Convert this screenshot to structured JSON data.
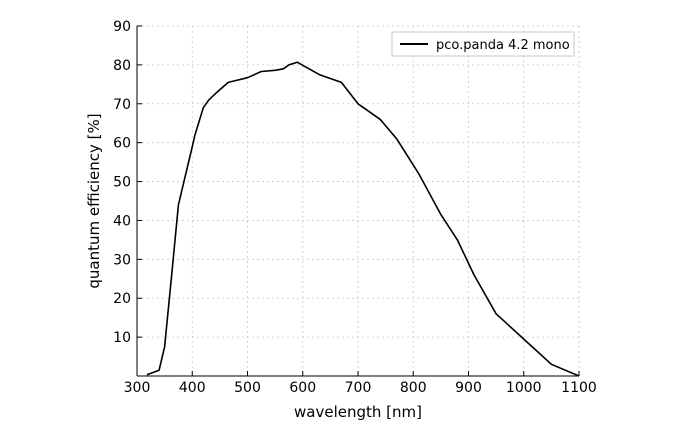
{
  "chart_data": {
    "type": "line",
    "title": "",
    "xlabel": "wavelength [nm]",
    "ylabel": "quantum efficiency [%]",
    "xlim": [
      300,
      1100
    ],
    "ylim": [
      0,
      90
    ],
    "xticks": [
      300,
      400,
      500,
      600,
      700,
      800,
      900,
      1000,
      1100
    ],
    "yticks": [
      10,
      20,
      30,
      40,
      50,
      60,
      70,
      80,
      90
    ],
    "grid": true,
    "legend_position": "top-right",
    "series": [
      {
        "name": "pco.panda 4.2 mono",
        "color": "#000000",
        "x": [
          318,
          340,
          350,
          362,
          375,
          400,
          405,
          420,
          430,
          445,
          465,
          500,
          525,
          550,
          565,
          575,
          590,
          630,
          670,
          700,
          740,
          770,
          810,
          850,
          880,
          910,
          950,
          1000,
          1050,
          1100
        ],
        "y": [
          0.3,
          1.5,
          7.5,
          25,
          44,
          59,
          62,
          69,
          71,
          73,
          75.5,
          76.7,
          78.3,
          78.6,
          79,
          80,
          80.7,
          77.5,
          75.5,
          70,
          66,
          61,
          52,
          41.5,
          35,
          26,
          16,
          9.5,
          3,
          0
        ]
      }
    ]
  }
}
